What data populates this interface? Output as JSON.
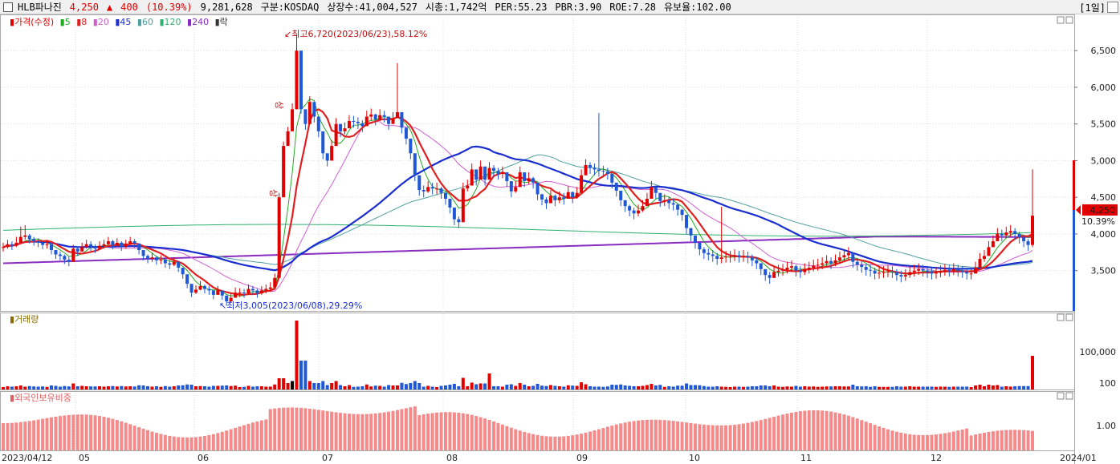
{
  "header": {
    "name": "HLB파나진",
    "price": "4,250",
    "change_arrow": "▲",
    "change": "400",
    "change_pct": "(10.39%)",
    "volume": "9,281,628",
    "market": "구분:KOSDAQ",
    "shares": "상장수:41,004,527",
    "mcap": "시총:1,742억",
    "per": "PER:55.23",
    "pbr": "PBR:3.90",
    "roe": "ROE:7.28",
    "reserve": "유보율:102.00",
    "period": "[1일]"
  },
  "colors": {
    "up": "#e00000",
    "down": "#1f57d4",
    "ma5": "#22aa22",
    "ma8": "#e02020",
    "ma20": "#d060d0",
    "ma45": "#1a2ed0",
    "ma60": "#50a0a0",
    "ma120": "#30b070",
    "ma240": "#8a2cc0",
    "foreign": "#f48a8a"
  },
  "legend": {
    "price_label": "가격(수정)",
    "ma": [
      "5",
      "8",
      "20",
      "45",
      "60",
      "120",
      "240"
    ],
    "extra": "락"
  },
  "annotations": {
    "high": "최고6,720(2023/06/23),58.12%",
    "low": "최저3,005(2023/06/08),29.29%",
    "sang1": "상",
    "sang2": "상",
    "last_price": "4,250",
    "last_pct": "10.39%"
  },
  "volume_panel": {
    "title": "거래량"
  },
  "foreign_panel": {
    "title": "외국인보유비중"
  },
  "chart_data": {
    "type": "candlestick",
    "x_range": [
      "2023/04/12",
      "2024/01"
    ],
    "price_axis": {
      "ticks": [
        "6,500",
        "6,000",
        "5,500",
        "5,000",
        "4,500",
        "4,000",
        "3,500"
      ],
      "values": [
        6500,
        6000,
        5500,
        5000,
        4500,
        4000,
        3500
      ],
      "ylim": [
        2950,
        6950
      ]
    },
    "x_ticks": [
      "2023/04/12",
      "05",
      "06",
      "07",
      "08",
      "09",
      "10",
      "11",
      "12",
      "2024/01"
    ],
    "volume_axis": {
      "ticks": [
        "100,000",
        "100"
      ]
    },
    "foreign_axis": {
      "ticks": [
        "1.00"
      ]
    },
    "close": [
      3820,
      3860,
      3840,
      3880,
      3960,
      3980,
      3930,
      3900,
      3880,
      3850,
      3860,
      3780,
      3720,
      3700,
      3650,
      3620,
      3800,
      3760,
      3820,
      3860,
      3830,
      3800,
      3840,
      3860,
      3900,
      3850,
      3880,
      3830,
      3860,
      3900,
      3870,
      3780,
      3700,
      3660,
      3680,
      3640,
      3650,
      3600,
      3580,
      3620,
      3540,
      3450,
      3320,
      3200,
      3240,
      3290,
      3250,
      3230,
      3170,
      3230,
      3160,
      3080,
      3130,
      3200,
      3200,
      3190,
      3250,
      3230,
      3190,
      3230,
      3250,
      3270,
      3400,
      4500,
      5200,
      5400,
      5700,
      6500,
      5700,
      5500,
      5800,
      5600,
      5400,
      5100,
      5000,
      5200,
      5500,
      5400,
      5440,
      5540,
      5530,
      5510,
      5470,
      5600,
      5630,
      5560,
      5620,
      5600,
      5500,
      5580,
      5660,
      5450,
      5300,
      5100,
      4800,
      4600,
      4580,
      4640,
      4620,
      4620,
      4560,
      4480,
      4360,
      4200,
      4160,
      4620,
      4660,
      4880,
      4740,
      4920,
      4740,
      4900,
      4860,
      4820,
      4840,
      4720,
      4580,
      4640,
      4840,
      4720,
      4760,
      4700,
      4540,
      4470,
      4420,
      4520,
      4460,
      4500,
      4480,
      4570,
      4500,
      4560,
      4800,
      4940,
      4900,
      4880,
      4860,
      4850,
      4820,
      4700,
      4590,
      4460,
      4380,
      4320,
      4280,
      4320,
      4380,
      4480,
      4640,
      4560,
      4450,
      4460,
      4420,
      4400,
      4330,
      4260,
      4080,
      3980,
      3880,
      3790,
      3740,
      3720,
      3700,
      3660,
      3680,
      3690,
      3690,
      3710,
      3690,
      3700,
      3680,
      3640,
      3600,
      3520,
      3440,
      3400,
      3480,
      3500,
      3510,
      3540,
      3560,
      3500,
      3480,
      3520,
      3540,
      3570,
      3580,
      3600,
      3630,
      3600,
      3640,
      3680,
      3710,
      3740,
      3620,
      3580,
      3550,
      3510,
      3500,
      3460,
      3470,
      3480,
      3490,
      3480,
      3440,
      3420,
      3440,
      3480,
      3500,
      3520,
      3500,
      3480,
      3460,
      3470,
      3490,
      3510,
      3500,
      3520,
      3500,
      3480,
      3460,
      3460,
      3540,
      3660,
      3700,
      3820,
      3900,
      4000,
      3980,
      4020,
      4040,
      4000,
      3950,
      3900,
      3850,
      4250
    ],
    "high": [
      3880,
      3920,
      3900,
      3960,
      4100,
      4120,
      4000,
      3960,
      3940,
      3900,
      3920,
      3850,
      3780,
      3760,
      3720,
      3690,
      3850,
      3830,
      3880,
      3920,
      3900,
      3860,
      3900,
      3920,
      3960,
      3920,
      3940,
      3900,
      3920,
      3960,
      3930,
      3850,
      3760,
      3720,
      3740,
      3700,
      3710,
      3660,
      3640,
      3680,
      3600,
      3510,
      3380,
      3260,
      3300,
      3360,
      3310,
      3290,
      3230,
      3290,
      3220,
      3150,
      3190,
      3270,
      3260,
      3250,
      3310,
      3290,
      3250,
      3290,
      3310,
      3340,
      3460,
      4560,
      5260,
      5460,
      5780,
      6720,
      6320,
      5580,
      5880,
      5680,
      5480,
      5180,
      5080,
      5280,
      5580,
      5480,
      5520,
      5620,
      5610,
      5590,
      5550,
      5680,
      5710,
      5640,
      5700,
      5680,
      5580,
      5660,
      6330,
      5530,
      5380,
      5180,
      4880,
      4680,
      4660,
      4720,
      4700,
      4700,
      4640,
      4560,
      4440,
      4280,
      4240,
      4700,
      4740,
      4960,
      4820,
      5000,
      4820,
      4980,
      4940,
      4900,
      4920,
      4800,
      4660,
      4720,
      4920,
      4800,
      4840,
      4780,
      4620,
      4550,
      4500,
      4600,
      4540,
      4580,
      4560,
      4650,
      4580,
      4640,
      4880,
      5020,
      4980,
      4960,
      5650,
      4930,
      4900,
      4780,
      4670,
      4540,
      4460,
      4400,
      4360,
      4400,
      4460,
      4560,
      4720,
      4640,
      4530,
      4540,
      4500,
      4480,
      4410,
      4340,
      4160,
      4060,
      3960,
      3870,
      3820,
      3800,
      3780,
      3740,
      4370,
      3770,
      3770,
      3790,
      3770,
      3780,
      3760,
      3720,
      3680,
      3600,
      3520,
      3480,
      3560,
      3580,
      3590,
      3620,
      3640,
      3580,
      3560,
      3600,
      3620,
      3650,
      3660,
      3680,
      3710,
      3680,
      3720,
      3760,
      3790,
      3820,
      3700,
      3660,
      3630,
      3590,
      3580,
      3540,
      3550,
      3560,
      3570,
      3560,
      3520,
      3500,
      3520,
      3560,
      3580,
      3600,
      3580,
      3560,
      3540,
      3550,
      3570,
      3590,
      3580,
      3600,
      3580,
      3560,
      3540,
      3540,
      3620,
      3740,
      3780,
      3900,
      3980,
      4080,
      4060,
      4100,
      4120,
      4080,
      4030,
      3980,
      3930,
      4880
    ],
    "low": [
      3760,
      3800,
      3780,
      3820,
      3900,
      3920,
      3870,
      3840,
      3820,
      3790,
      3800,
      3720,
      3660,
      3640,
      3590,
      3560,
      3740,
      3700,
      3760,
      3800,
      3770,
      3740,
      3780,
      3800,
      3840,
      3790,
      3820,
      3770,
      3800,
      3840,
      3810,
      3720,
      3640,
      3600,
      3620,
      3580,
      3590,
      3540,
      3520,
      3560,
      3480,
      3390,
      3260,
      3140,
      3180,
      3230,
      3190,
      3170,
      3110,
      3170,
      3100,
      3020,
      3070,
      3140,
      3140,
      3130,
      3190,
      3170,
      3130,
      3170,
      3190,
      3210,
      3340,
      4440,
      5140,
      5340,
      5620,
      6420,
      5640,
      5420,
      5720,
      5520,
      5320,
      5020,
      4920,
      5120,
      5420,
      5320,
      5360,
      5460,
      5450,
      5430,
      5390,
      5520,
      5550,
      5480,
      5540,
      5520,
      5420,
      5500,
      5580,
      5370,
      5220,
      5020,
      4720,
      4520,
      4500,
      4560,
      4540,
      4540,
      4480,
      4400,
      4280,
      4120,
      4080,
      4540,
      4580,
      4800,
      4660,
      4840,
      4660,
      4820,
      4780,
      4740,
      4760,
      4640,
      4500,
      4560,
      4760,
      4640,
      4680,
      4620,
      4460,
      4390,
      4340,
      4440,
      4380,
      4420,
      4400,
      4490,
      4420,
      4480,
      4720,
      4860,
      4820,
      4800,
      4780,
      4770,
      4740,
      4620,
      4510,
      4380,
      4300,
      4240,
      4200,
      4240,
      4300,
      4400,
      4560,
      4480,
      4370,
      4380,
      4340,
      4320,
      4250,
      4180,
      4000,
      3900,
      3800,
      3710,
      3660,
      3640,
      3620,
      3580,
      3600,
      3610,
      3610,
      3630,
      3610,
      3620,
      3600,
      3560,
      3520,
      3440,
      3360,
      3320,
      3400,
      3420,
      3430,
      3460,
      3480,
      3420,
      3400,
      3440,
      3460,
      3490,
      3500,
      3520,
      3550,
      3520,
      3560,
      3600,
      3630,
      3660,
      3540,
      3500,
      3470,
      3430,
      3420,
      3380,
      3390,
      3400,
      3410,
      3400,
      3360,
      3340,
      3360,
      3400,
      3420,
      3440,
      3420,
      3400,
      3380,
      3390,
      3410,
      3430,
      3420,
      3440,
      3420,
      3400,
      3380,
      3380,
      3460,
      3580,
      3620,
      3740,
      3820,
      3920,
      3900,
      3940,
      3960,
      3920,
      3870,
      3820,
      3770,
      3820
    ],
    "volume_note": "daily bars; spikes around 06/23 and last day",
    "foreign_note": "foreign holding ratio bars"
  }
}
